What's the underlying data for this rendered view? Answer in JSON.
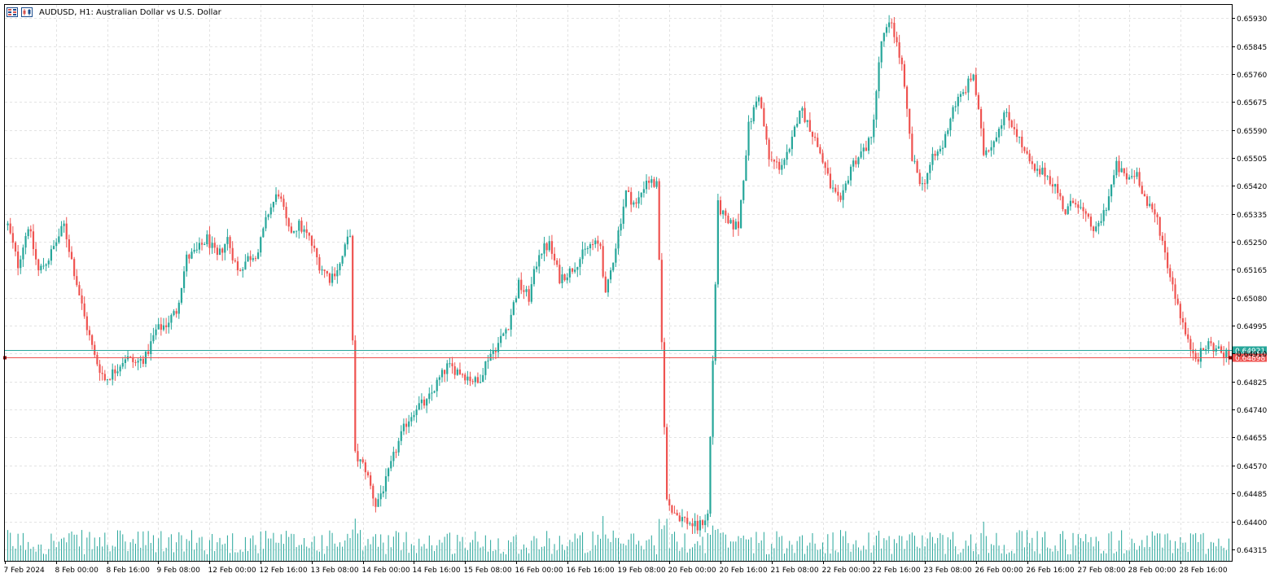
{
  "window": {
    "symbol_title": "AUDUSD, H1:  Australian Dollar vs U.S. Dollar",
    "icons": [
      "chart-type-icon",
      "indicator-list-icon"
    ]
  },
  "colors": {
    "bull": "#26a69a",
    "bear": "#ef5350",
    "grid": "#e3e3e3",
    "frame": "#000000",
    "ask_line": "#26a69a",
    "bid_line": "#ef5350",
    "volume": "#26a69a"
  },
  "price_axis": {
    "ticks": [
      "0.65930",
      "0.65845",
      "0.65760",
      "0.65675",
      "0.65590",
      "0.65505",
      "0.65420",
      "0.65335",
      "0.65250",
      "0.65165",
      "0.65080",
      "0.64995",
      "0.64910",
      "0.64825",
      "0.64740",
      "0.64655",
      "0.64570",
      "0.64485",
      "0.64400",
      "0.64315"
    ],
    "ask_label": "0.64921",
    "bid_label": "0.64898"
  },
  "time_axis": {
    "labels": [
      "7 Feb 2024",
      "8 Feb 00:00",
      "8 Feb 16:00",
      "9 Feb 08:00",
      "12 Feb 00:00",
      "12 Feb 16:00",
      "13 Feb 08:00",
      "14 Feb 00:00",
      "14 Feb 16:00",
      "15 Feb 08:00",
      "16 Feb 00:00",
      "16 Feb 16:00",
      "19 Feb 08:00",
      "20 Feb 00:00",
      "20 Feb 16:00",
      "21 Feb 08:00",
      "22 Feb 00:00",
      "22 Feb 16:00",
      "23 Feb 08:00",
      "26 Feb 00:00",
      "26 Feb 16:00",
      "27 Feb 08:00",
      "28 Feb 00:00",
      "28 Feb 16:00"
    ]
  },
  "chart_data": {
    "type": "candlestick",
    "symbol": "AUDUSD",
    "timeframe": "H1",
    "ylim": [
      0.6428,
      0.6597
    ],
    "ask": 0.64921,
    "bid": 0.64898,
    "anchors": [
      [
        0,
        0.653
      ],
      [
        4,
        0.6518
      ],
      [
        8,
        0.653
      ],
      [
        12,
        0.6516
      ],
      [
        16,
        0.652
      ],
      [
        22,
        0.653
      ],
      [
        26,
        0.6516
      ],
      [
        30,
        0.6502
      ],
      [
        34,
        0.649
      ],
      [
        38,
        0.6483
      ],
      [
        42,
        0.6486
      ],
      [
        46,
        0.649
      ],
      [
        50,
        0.6488
      ],
      [
        54,
        0.649
      ],
      [
        58,
        0.6498
      ],
      [
        62,
        0.65
      ],
      [
        66,
        0.6504
      ],
      [
        70,
        0.652
      ],
      [
        74,
        0.6522
      ],
      [
        78,
        0.6526
      ],
      [
        82,
        0.652
      ],
      [
        86,
        0.6526
      ],
      [
        90,
        0.6516
      ],
      [
        94,
        0.652
      ],
      [
        98,
        0.6522
      ],
      [
        102,
        0.6534
      ],
      [
        106,
        0.654
      ],
      [
        110,
        0.6528
      ],
      [
        114,
        0.653
      ],
      [
        118,
        0.6526
      ],
      [
        122,
        0.6518
      ],
      [
        126,
        0.6514
      ],
      [
        130,
        0.6518
      ],
      [
        134,
        0.6528
      ],
      [
        136,
        0.646
      ],
      [
        140,
        0.6456
      ],
      [
        144,
        0.6445
      ],
      [
        148,
        0.6452
      ],
      [
        152,
        0.6462
      ],
      [
        156,
        0.647
      ],
      [
        160,
        0.6475
      ],
      [
        164,
        0.6476
      ],
      [
        168,
        0.6482
      ],
      [
        172,
        0.6487
      ],
      [
        176,
        0.6486
      ],
      [
        180,
        0.6484
      ],
      [
        184,
        0.6482
      ],
      [
        188,
        0.649
      ],
      [
        192,
        0.6494
      ],
      [
        196,
        0.65
      ],
      [
        200,
        0.6512
      ],
      [
        204,
        0.6508
      ],
      [
        208,
        0.6522
      ],
      [
        212,
        0.6524
      ],
      [
        216,
        0.6514
      ],
      [
        220,
        0.6516
      ],
      [
        224,
        0.652
      ],
      [
        228,
        0.6524
      ],
      [
        232,
        0.6524
      ],
      [
        234,
        0.6508
      ],
      [
        238,
        0.6524
      ],
      [
        242,
        0.654
      ],
      [
        246,
        0.6536
      ],
      [
        250,
        0.6544
      ],
      [
        254,
        0.6542
      ],
      [
        258,
        0.6446
      ],
      [
        262,
        0.6442
      ],
      [
        266,
        0.644
      ],
      [
        270,
        0.6438
      ],
      [
        274,
        0.6442
      ],
      [
        278,
        0.6536
      ],
      [
        282,
        0.653
      ],
      [
        286,
        0.653
      ],
      [
        290,
        0.656
      ],
      [
        294,
        0.657
      ],
      [
        298,
        0.655
      ],
      [
        302,
        0.6548
      ],
      [
        306,
        0.6552
      ],
      [
        310,
        0.6566
      ],
      [
        314,
        0.656
      ],
      [
        318,
        0.6552
      ],
      [
        322,
        0.6542
      ],
      [
        326,
        0.6536
      ],
      [
        330,
        0.6548
      ],
      [
        334,
        0.6552
      ],
      [
        338,
        0.6556
      ],
      [
        342,
        0.6586
      ],
      [
        346,
        0.6592
      ],
      [
        350,
        0.6578
      ],
      [
        354,
        0.655
      ],
      [
        358,
        0.6542
      ],
      [
        362,
        0.655
      ],
      [
        366,
        0.6554
      ],
      [
        370,
        0.6566
      ],
      [
        374,
        0.657
      ],
      [
        378,
        0.6576
      ],
      [
        382,
        0.6552
      ],
      [
        386,
        0.6556
      ],
      [
        390,
        0.6564
      ],
      [
        394,
        0.656
      ],
      [
        398,
        0.6552
      ],
      [
        402,
        0.6546
      ],
      [
        406,
        0.6546
      ],
      [
        410,
        0.6542
      ],
      [
        414,
        0.6534
      ],
      [
        418,
        0.6538
      ],
      [
        422,
        0.6532
      ],
      [
        426,
        0.6528
      ],
      [
        430,
        0.6536
      ],
      [
        434,
        0.6548
      ],
      [
        438,
        0.6544
      ],
      [
        442,
        0.6546
      ],
      [
        446,
        0.6536
      ],
      [
        450,
        0.6532
      ],
      [
        454,
        0.6518
      ],
      [
        458,
        0.6506
      ],
      [
        462,
        0.6494
      ],
      [
        466,
        0.649
      ],
      [
        470,
        0.6494
      ],
      [
        474,
        0.6492
      ],
      [
        478,
        0.649
      ]
    ],
    "volume_ylim": [
      0,
      100
    ]
  }
}
